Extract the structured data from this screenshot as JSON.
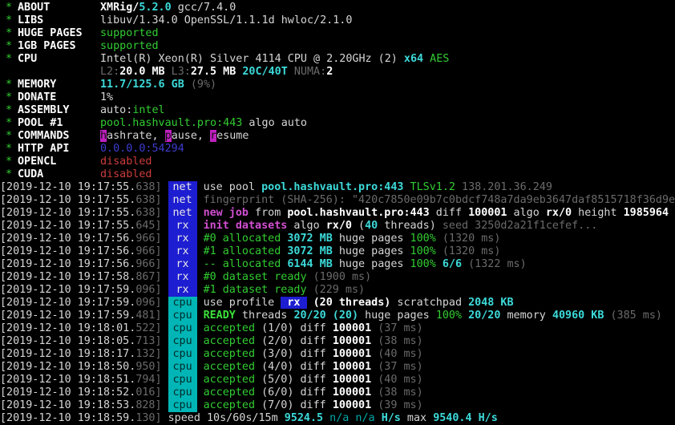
{
  "terminal": {
    "kind": "xmrig-miner-console",
    "colors": {
      "background": "#000000",
      "foreground": "#d6d6d6",
      "green": "#32cd32",
      "cyan": "#3ddada",
      "dim_gray": "#6b6b6b",
      "magenta": "#d24fd2",
      "red": "#cd3c3c",
      "blue_text": "#3c3cd0",
      "net_badge_bg": "#1d1dd1",
      "cpu_badge_bg": "#00b5b5",
      "hotkey_bg": "#c020c0"
    },
    "header_rows": [
      {
        "ast": "*",
        "label": "ABOUT",
        "spans": [
          {
            "s": "wb",
            "t": "XMRig/"
          },
          {
            "s": "cb",
            "t": "5.2.0"
          },
          {
            "s": "w",
            "t": " gcc/7.4.0"
          }
        ]
      },
      {
        "ast": "*",
        "label": "LIBS",
        "spans": [
          {
            "s": "w",
            "t": "libuv/1.34.0 OpenSSL/1.1.1d hwloc/2.1.0"
          }
        ]
      },
      {
        "ast": "*",
        "label": "HUGE PAGES",
        "spans": [
          {
            "s": "g",
            "t": "supported"
          }
        ]
      },
      {
        "ast": "*",
        "label": "1GB PAGES",
        "spans": [
          {
            "s": "g",
            "t": "supported"
          }
        ]
      },
      {
        "ast": "*",
        "label": "CPU",
        "spans": [
          {
            "s": "w",
            "t": "Intel(R) Xeon(R) Silver 4114 CPU @ 2.20GHz (2) "
          },
          {
            "s": "cb",
            "t": "x64"
          },
          {
            "s": "w",
            "t": " "
          },
          {
            "s": "g",
            "t": "AES"
          }
        ]
      },
      {
        "ast": "",
        "label": "",
        "spans": [
          {
            "s": "dim",
            "t": "L2:"
          },
          {
            "s": "wb",
            "t": "20.0 MB"
          },
          {
            "s": "dim",
            "t": " L3:"
          },
          {
            "s": "wb",
            "t": "27.5 MB"
          },
          {
            "s": "cb",
            "t": " 20C/40T"
          },
          {
            "s": "dim",
            "t": " NUMA:"
          },
          {
            "s": "wb",
            "t": "2"
          }
        ]
      },
      {
        "ast": "*",
        "label": "MEMORY",
        "spans": [
          {
            "s": "cb",
            "t": "11.7/125.6 GB"
          },
          {
            "s": "dim",
            "t": " (9%)"
          }
        ]
      },
      {
        "ast": "*",
        "label": "DONATE",
        "spans": [
          {
            "s": "w",
            "t": "1%"
          }
        ]
      },
      {
        "ast": "*",
        "label": "ASSEMBLY",
        "spans": [
          {
            "s": "w",
            "t": "auto:"
          },
          {
            "s": "g",
            "t": "intel"
          }
        ]
      },
      {
        "ast": "*",
        "label": "POOL #1",
        "spans": [
          {
            "s": "g",
            "t": "pool.hashvault.pro:443"
          },
          {
            "s": "w",
            "t": " algo auto"
          }
        ]
      },
      {
        "ast": "*",
        "label": "COMMANDS",
        "spans": [
          {
            "s": "hk",
            "t": "h"
          },
          {
            "s": "w",
            "t": "ashrate, "
          },
          {
            "s": "hk",
            "t": "p"
          },
          {
            "s": "w",
            "t": "ause, "
          },
          {
            "s": "hk",
            "t": "r"
          },
          {
            "s": "w",
            "t": "esume"
          }
        ]
      },
      {
        "ast": "*",
        "label": "HTTP API",
        "spans": [
          {
            "s": "blue",
            "t": "0.0.0.0:54294"
          }
        ]
      },
      {
        "ast": "*",
        "label": "OPENCL",
        "spans": [
          {
            "s": "red",
            "t": "disabled"
          }
        ]
      },
      {
        "ast": "*",
        "label": "CUDA",
        "spans": [
          {
            "s": "red",
            "t": "disabled"
          }
        ]
      }
    ],
    "log_rows": [
      {
        "time": "[2019-12-10 19:17:55.",
        "ms": "638]",
        "tag": "net",
        "spans": [
          {
            "s": "w",
            "t": "use pool "
          },
          {
            "s": "cb",
            "t": "pool.hashvault.pro:443"
          },
          {
            "s": "g",
            "t": " TLSv1.2"
          },
          {
            "s": "dim",
            "t": " 138.201.36.249"
          }
        ]
      },
      {
        "time": "[2019-12-10 19:17:55.",
        "ms": "638]",
        "tag": "net",
        "spans": [
          {
            "s": "dim",
            "t": "fingerprint (SHA-256): \"420c7850e09b7c0bdcf748a7da9eb3647daf8515718f36d9e"
          }
        ]
      },
      {
        "time": "[2019-12-10 19:17:55.",
        "ms": "638]",
        "tag": "net",
        "spans": [
          {
            "s": "mag",
            "t": "new job"
          },
          {
            "s": "w",
            "t": " from "
          },
          {
            "s": "wb",
            "t": "pool.hashvault.pro:443"
          },
          {
            "s": "w",
            "t": " diff "
          },
          {
            "s": "wb",
            "t": "100001"
          },
          {
            "s": "w",
            "t": " algo "
          },
          {
            "s": "wb",
            "t": "rx/0"
          },
          {
            "s": "w",
            "t": " height "
          },
          {
            "s": "wb",
            "t": "1985964"
          }
        ]
      },
      {
        "time": "[2019-12-10 19:17:55.",
        "ms": "645]",
        "tag": "rx",
        "spans": [
          {
            "s": "mag",
            "t": "init datasets"
          },
          {
            "s": "w",
            "t": " algo "
          },
          {
            "s": "wb",
            "t": "rx/0"
          },
          {
            "s": "w",
            "t": " ("
          },
          {
            "s": "cb",
            "t": "40"
          },
          {
            "s": "w",
            "t": " threads) "
          },
          {
            "s": "dim",
            "t": "seed 3250d2a21f1cefef..."
          }
        ]
      },
      {
        "time": "[2019-12-10 19:17:56.",
        "ms": "966]",
        "tag": "rx",
        "spans": [
          {
            "s": "g",
            "t": "#0 allocated"
          },
          {
            "s": "cb",
            "t": " 3072 MB"
          },
          {
            "s": "w",
            "t": " huge pages"
          },
          {
            "s": "g",
            "t": " 100%"
          },
          {
            "s": "dim",
            "t": " (1320 ms)"
          }
        ]
      },
      {
        "time": "[2019-12-10 19:17:56.",
        "ms": "966]",
        "tag": "rx",
        "spans": [
          {
            "s": "g",
            "t": "#1 allocated"
          },
          {
            "s": "cb",
            "t": " 3072 MB"
          },
          {
            "s": "w",
            "t": " huge pages"
          },
          {
            "s": "g",
            "t": " 100%"
          },
          {
            "s": "dim",
            "t": " (1320 ms)"
          }
        ]
      },
      {
        "time": "[2019-12-10 19:17:56.",
        "ms": "966]",
        "tag": "rx",
        "spans": [
          {
            "s": "g",
            "t": "-- allocated"
          },
          {
            "s": "cb",
            "t": " 6144 MB"
          },
          {
            "s": "w",
            "t": " huge pages"
          },
          {
            "s": "g",
            "t": " 100%"
          },
          {
            "s": "cb",
            "t": " 6/6"
          },
          {
            "s": "dim",
            "t": " (1322 ms)"
          }
        ]
      },
      {
        "time": "[2019-12-10 19:17:58.",
        "ms": "867]",
        "tag": "rx",
        "spans": [
          {
            "s": "g",
            "t": "#0 dataset ready"
          },
          {
            "s": "dim",
            "t": " (1900 ms)"
          }
        ]
      },
      {
        "time": "[2019-12-10 19:17:59.",
        "ms": "096]",
        "tag": "rx",
        "spans": [
          {
            "s": "g",
            "t": "#1 dataset ready"
          },
          {
            "s": "dim",
            "t": " (229 ms)"
          }
        ]
      },
      {
        "time": "[2019-12-10 19:17:59.",
        "ms": "096]",
        "tag": "cpu",
        "spans": [
          {
            "s": "w",
            "t": "use profile "
          },
          {
            "s": "rxtag",
            "t": " rx "
          },
          {
            "s": "wb",
            "t": " (20 threads)"
          },
          {
            "s": "w",
            "t": " scratchpad "
          },
          {
            "s": "cb",
            "t": "2048 KB"
          }
        ]
      },
      {
        "time": "[2019-12-10 19:17:59.",
        "ms": "481]",
        "tag": "cpu",
        "spans": [
          {
            "s": "gb",
            "t": "READY"
          },
          {
            "s": "w",
            "t": " threads "
          },
          {
            "s": "cb",
            "t": "20/20 (20)"
          },
          {
            "s": "w",
            "t": " huge pages "
          },
          {
            "s": "g",
            "t": "100%"
          },
          {
            "s": "cb",
            "t": " 20/20"
          },
          {
            "s": "w",
            "t": " memory "
          },
          {
            "s": "cb",
            "t": "40960 KB"
          },
          {
            "s": "dim",
            "t": " (385 ms)"
          }
        ]
      },
      {
        "time": "[2019-12-10 19:18:01.",
        "ms": "522]",
        "tag": "cpu",
        "spans": [
          {
            "s": "g",
            "t": "accepted"
          },
          {
            "s": "w",
            "t": " (1/0) diff "
          },
          {
            "s": "wb",
            "t": "100001"
          },
          {
            "s": "dim",
            "t": " (37 ms)"
          }
        ]
      },
      {
        "time": "[2019-12-10 19:18:05.",
        "ms": "713]",
        "tag": "cpu",
        "spans": [
          {
            "s": "g",
            "t": "accepted"
          },
          {
            "s": "w",
            "t": " (2/0) diff "
          },
          {
            "s": "wb",
            "t": "100001"
          },
          {
            "s": "dim",
            "t": " (38 ms)"
          }
        ]
      },
      {
        "time": "[2019-12-10 19:18:17.",
        "ms": "132]",
        "tag": "cpu",
        "spans": [
          {
            "s": "g",
            "t": "accepted"
          },
          {
            "s": "w",
            "t": " (3/0) diff "
          },
          {
            "s": "wb",
            "t": "100001"
          },
          {
            "s": "dim",
            "t": " (40 ms)"
          }
        ]
      },
      {
        "time": "[2019-12-10 19:18:50.",
        "ms": "950]",
        "tag": "cpu",
        "spans": [
          {
            "s": "g",
            "t": "accepted"
          },
          {
            "s": "w",
            "t": " (4/0) diff "
          },
          {
            "s": "wb",
            "t": "100001"
          },
          {
            "s": "dim",
            "t": " (37 ms)"
          }
        ]
      },
      {
        "time": "[2019-12-10 19:18:51.",
        "ms": "794]",
        "tag": "cpu",
        "spans": [
          {
            "s": "g",
            "t": "accepted"
          },
          {
            "s": "w",
            "t": " (5/0) diff "
          },
          {
            "s": "wb",
            "t": "100001"
          },
          {
            "s": "dim",
            "t": " (40 ms)"
          }
        ]
      },
      {
        "time": "[2019-12-10 19:18:52.",
        "ms": "016]",
        "tag": "cpu",
        "spans": [
          {
            "s": "g",
            "t": "accepted"
          },
          {
            "s": "w",
            "t": " (6/0) diff "
          },
          {
            "s": "wb",
            "t": "100001"
          },
          {
            "s": "dim",
            "t": " (38 ms)"
          }
        ]
      },
      {
        "time": "[2019-12-10 19:18:53.",
        "ms": "828]",
        "tag": "cpu",
        "spans": [
          {
            "s": "g",
            "t": "accepted"
          },
          {
            "s": "w",
            "t": " (7/0) diff "
          },
          {
            "s": "wb",
            "t": "100001"
          },
          {
            "s": "dim",
            "t": " (39 ms)"
          }
        ]
      },
      {
        "time": "[2019-12-10 19:18:59.",
        "ms": "130]",
        "tag": null,
        "spans": [
          {
            "s": "w",
            "t": " speed 10s/60s/15m "
          },
          {
            "s": "cb",
            "t": "9524.5"
          },
          {
            "s": "c",
            "t": " n/a n/a "
          },
          {
            "s": "cb",
            "t": "H/s"
          },
          {
            "s": "w",
            "t": " max "
          },
          {
            "s": "cb",
            "t": "9540.4 H/s"
          }
        ]
      }
    ]
  }
}
